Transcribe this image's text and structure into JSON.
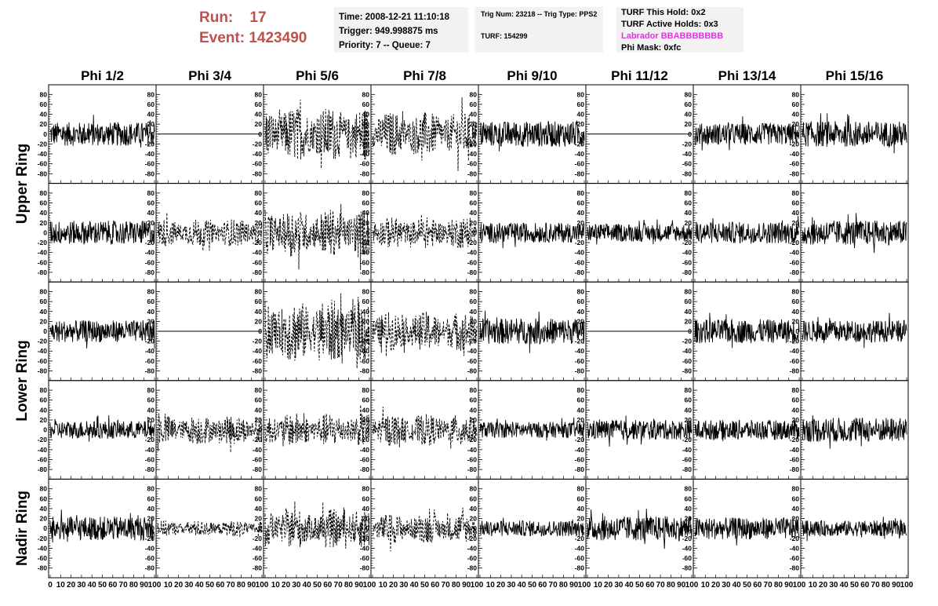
{
  "header": {
    "run_label": "Run:",
    "run_value": "17",
    "event_label": "Event:",
    "event_value": "1423490",
    "time": "Time: 2008-12-21 11:10:18",
    "trigger": "Trigger: 949.998875 ms",
    "priority": "Priority: 7 -- Queue: 7",
    "trig_num": "Trig Num: 23218 -- Trig Type: PPS2",
    "turf": "TURF: 154299",
    "turf_this_hold": "TURF This Hold: 0x2",
    "turf_active_holds": "TURF Active Holds: 0x3",
    "labrador": "Labrador BBABBBBBBB",
    "phi_mask": "Phi Mask: 0xfc",
    "accent_color": "#c0504d",
    "labrador_color": "#e033e0"
  },
  "columns": [
    "Phi 1/2",
    "Phi 3/4",
    "Phi 5/6",
    "Phi 7/8",
    "Phi 9/10",
    "Phi 11/12",
    "Phi 13/14",
    "Phi 15/16"
  ],
  "ring_labels": [
    {
      "text": "Upper Ring",
      "rows": [
        0,
        1
      ]
    },
    {
      "text": "Lower Ring",
      "rows": [
        2,
        3
      ]
    },
    {
      "text": "Nadir Ring",
      "rows": [
        4,
        4
      ]
    }
  ],
  "chart_data": {
    "type": "line",
    "layout": "grid 5 rows x 8 columns of waveform panels",
    "ylim": [
      -90,
      90
    ],
    "y_ticks": [
      -80,
      -60,
      -40,
      -20,
      0,
      20,
      40,
      60,
      80
    ],
    "y_tick_labels": [
      "-80",
      "-60",
      "-40",
      "-20",
      "0",
      "20",
      "40",
      "60",
      "80"
    ],
    "x_tick_labels_first": [
      "0",
      "10",
      "20",
      "30",
      "40",
      "50",
      "60",
      "70",
      "80",
      "90",
      "100"
    ],
    "x_tick_labels_other": [
      "10",
      "20",
      "30",
      "40",
      "50",
      "60",
      "70",
      "80",
      "90",
      "100"
    ],
    "xlim": [
      0,
      100
    ],
    "grid": false,
    "panels": [
      [
        {
          "style": "solid",
          "amp": 24
        },
        {
          "style": "flat",
          "amp": 0
        },
        {
          "style": "dashed",
          "amp": 55
        },
        {
          "style": "dashed",
          "amp": 45
        },
        {
          "style": "solid",
          "amp": 26
        },
        {
          "style": "flat",
          "amp": 0
        },
        {
          "style": "solid",
          "amp": 22
        },
        {
          "style": "solid",
          "amp": 26
        }
      ],
      [
        {
          "style": "solid",
          "amp": 24
        },
        {
          "style": "dashed",
          "amp": 28
        },
        {
          "style": "dashed",
          "amp": 48
        },
        {
          "style": "dashed",
          "amp": 32
        },
        {
          "style": "solid",
          "amp": 20
        },
        {
          "style": "solid",
          "amp": 18
        },
        {
          "style": "solid",
          "amp": 22
        },
        {
          "style": "solid",
          "amp": 25
        }
      ],
      [
        {
          "style": "solid",
          "amp": 22
        },
        {
          "style": "flat",
          "amp": 0
        },
        {
          "style": "dashed",
          "amp": 65
        },
        {
          "style": "dashed",
          "amp": 40
        },
        {
          "style": "solid",
          "amp": 26
        },
        {
          "style": "flat",
          "amp": 0
        },
        {
          "style": "solid",
          "amp": 24
        },
        {
          "style": "solid",
          "amp": 22
        }
      ],
      [
        {
          "style": "solid",
          "amp": 18
        },
        {
          "style": "dashed",
          "amp": 30
        },
        {
          "style": "dashed",
          "amp": 34
        },
        {
          "style": "dashed",
          "amp": 32
        },
        {
          "style": "solid",
          "amp": 16
        },
        {
          "style": "solid",
          "amp": 20
        },
        {
          "style": "solid",
          "amp": 20
        },
        {
          "style": "solid",
          "amp": 25
        }
      ],
      [
        {
          "style": "solid",
          "amp": 24
        },
        {
          "style": "dashed",
          "amp": 16
        },
        {
          "style": "dashed",
          "amp": 40
        },
        {
          "style": "dashed",
          "amp": 30
        },
        {
          "style": "solid",
          "amp": 16
        },
        {
          "style": "solid",
          "amp": 25
        },
        {
          "style": "solid",
          "amp": 22
        },
        {
          "style": "solid",
          "amp": 16
        }
      ]
    ]
  }
}
